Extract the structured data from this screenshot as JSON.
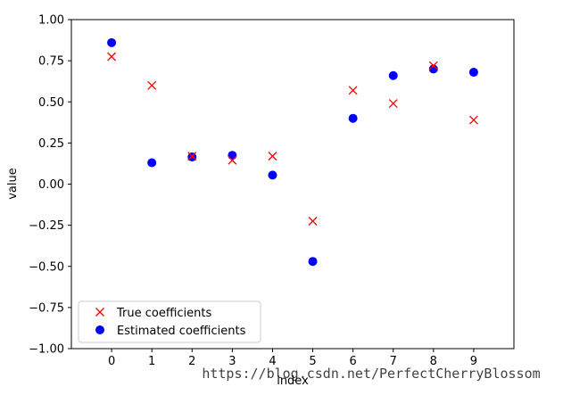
{
  "chart_data": {
    "type": "scatter",
    "title": "",
    "xlabel": "index",
    "ylabel": "value",
    "xlim": [
      -1,
      10
    ],
    "ylim": [
      -1.0,
      1.0
    ],
    "x_ticks": [
      0,
      1,
      2,
      3,
      4,
      5,
      6,
      7,
      8,
      9
    ],
    "x_tick_labels": [
      "0",
      "1",
      "2",
      "3",
      "4",
      "5",
      "6",
      "7",
      "8",
      "9"
    ],
    "y_ticks": [
      1.0,
      0.75,
      0.5,
      0.25,
      0.0,
      -0.25,
      -0.5,
      -0.75,
      -1.0
    ],
    "y_tick_labels": [
      "1.00",
      "0.75",
      "0.50",
      "0.25",
      "0.00",
      "−0.25",
      "−0.50",
      "−0.75",
      "−1.00"
    ],
    "grid": false,
    "legend_position": "lower-left",
    "series": [
      {
        "name": "True coefficients",
        "marker": "x",
        "color": "#ff0000",
        "x": [
          0,
          1,
          2,
          3,
          4,
          5,
          6,
          7,
          8,
          9
        ],
        "y": [
          0.775,
          0.6,
          0.17,
          0.145,
          0.17,
          -0.225,
          0.57,
          0.49,
          0.72,
          0.39
        ]
      },
      {
        "name": "Estimated coefficients",
        "marker": "circle",
        "color": "#0000ff",
        "x": [
          0,
          1,
          2,
          3,
          4,
          5,
          6,
          7,
          8,
          9
        ],
        "y": [
          0.86,
          0.13,
          0.165,
          0.175,
          0.055,
          -0.47,
          0.4,
          0.66,
          0.7,
          0.68
        ]
      }
    ]
  },
  "watermark": "https://blog.csdn.net/PerfectCherryBlossom"
}
